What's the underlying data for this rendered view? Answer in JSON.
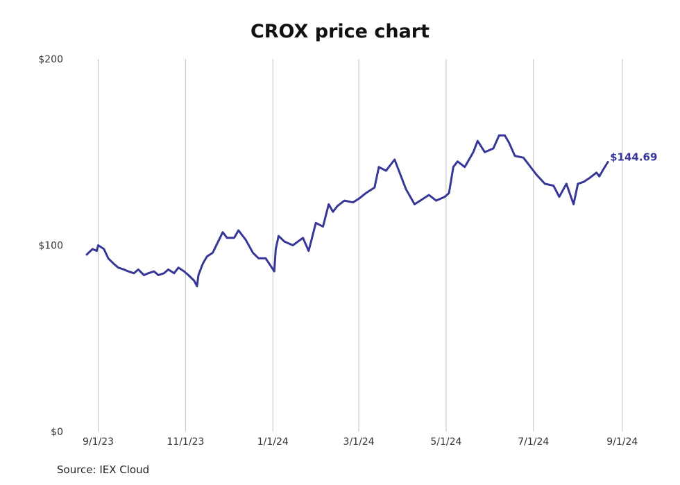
{
  "chart_data": {
    "type": "line",
    "title": "CROX price chart",
    "source": "Source: IEX Cloud",
    "xlabel": "",
    "ylabel": "",
    "ylim": [
      0,
      200
    ],
    "y_ticks": [
      {
        "value": 0,
        "label": "$0"
      },
      {
        "value": 100,
        "label": "$100"
      },
      {
        "value": 200,
        "label": "$200"
      }
    ],
    "x_range": [
      "2023-08-24",
      "2024-09-05"
    ],
    "x_ticks": [
      {
        "date": "2023-09-01",
        "label": "9/1/23"
      },
      {
        "date": "2023-11-01",
        "label": "11/1/23"
      },
      {
        "date": "2024-01-01",
        "label": "1/1/24"
      },
      {
        "date": "2024-03-01",
        "label": "3/1/24"
      },
      {
        "date": "2024-05-01",
        "label": "5/1/24"
      },
      {
        "date": "2024-07-01",
        "label": "7/1/24"
      },
      {
        "date": "2024-09-01",
        "label": "9/1/24"
      }
    ],
    "grid": {
      "vertical": true,
      "horizontal": false
    },
    "line_color": "#363797",
    "last_value_label": "$144.69",
    "series": [
      {
        "x": [
          "2023-08-24",
          "2023-08-28",
          "2023-08-31",
          "2023-09-01",
          "2023-09-05",
          "2023-09-08",
          "2023-09-12",
          "2023-09-15",
          "2023-09-19",
          "2023-09-22",
          "2023-09-26",
          "2023-09-29",
          "2023-10-03",
          "2023-10-06",
          "2023-10-10",
          "2023-10-13",
          "2023-10-17",
          "2023-10-20",
          "2023-10-24",
          "2023-10-27",
          "2023-10-31",
          "2023-11-03",
          "2023-11-07",
          "2023-11-09",
          "2023-11-10",
          "2023-11-13",
          "2023-11-16",
          "2023-11-20",
          "2023-11-27",
          "2023-11-30",
          "2023-12-05",
          "2023-12-08",
          "2023-12-13",
          "2023-12-18",
          "2023-12-22",
          "2023-12-27",
          "2024-01-02",
          "2024-01-03",
          "2024-01-05",
          "2024-01-09",
          "2024-01-15",
          "2024-01-22",
          "2024-01-26",
          "2024-01-31",
          "2024-02-05",
          "2024-02-09",
          "2024-02-12",
          "2024-02-15",
          "2024-02-20",
          "2024-02-26",
          "2024-03-01",
          "2024-03-06",
          "2024-03-12",
          "2024-03-15",
          "2024-03-20",
          "2024-03-26",
          "2024-04-03",
          "2024-04-09",
          "2024-04-15",
          "2024-04-19",
          "2024-04-24",
          "2024-04-30",
          "2024-05-03",
          "2024-05-06",
          "2024-05-09",
          "2024-05-14",
          "2024-05-20",
          "2024-05-23",
          "2024-05-28",
          "2024-06-03",
          "2024-06-07",
          "2024-06-11",
          "2024-06-14",
          "2024-06-18",
          "2024-06-24",
          "2024-06-28",
          "2024-07-03",
          "2024-07-09",
          "2024-07-15",
          "2024-07-19",
          "2024-07-24",
          "2024-07-29",
          "2024-08-01",
          "2024-08-05",
          "2024-08-09",
          "2024-08-14",
          "2024-08-16",
          "2024-08-19",
          "2024-08-22"
        ],
        "values": [
          95,
          98,
          97,
          100,
          98,
          93,
          90,
          88,
          87,
          86,
          85,
          87,
          84,
          85,
          86,
          84,
          85,
          87,
          85,
          88,
          86,
          84,
          81,
          78,
          84,
          90,
          94,
          96,
          107,
          104,
          104,
          108,
          103,
          96,
          93,
          93,
          86,
          98,
          105,
          102,
          100,
          104,
          97,
          112,
          110,
          122,
          118,
          121,
          124,
          123,
          125,
          128,
          131,
          142,
          140,
          146,
          130,
          122,
          125,
          127,
          124,
          126,
          128,
          142,
          145,
          142,
          150,
          156,
          150,
          152,
          159,
          159,
          155,
          148,
          147,
          143,
          138,
          133,
          132,
          126,
          133,
          122,
          133,
          134,
          136,
          139,
          137,
          141,
          144.69
        ]
      }
    ]
  }
}
